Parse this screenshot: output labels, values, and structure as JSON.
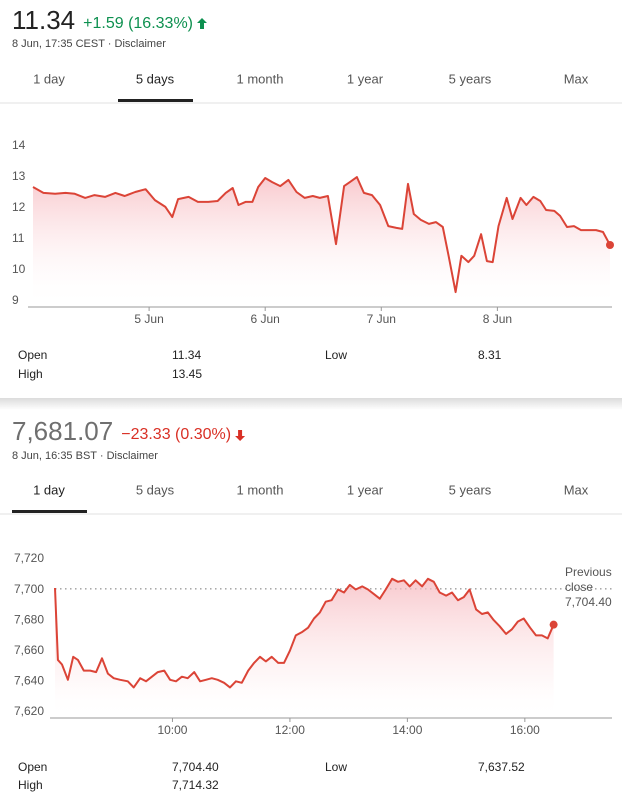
{
  "chart_data": [
    {
      "type": "line",
      "price": "11.34",
      "price_color": "#222222",
      "change": "+1.59 (16.33%)",
      "change_color": "#0d904f",
      "change_direction": "up",
      "meta": "8 Jun, 17:35 CEST · Disclaimer",
      "tabs": [
        "1 day",
        "5 days",
        "1 month",
        "1 year",
        "5 years",
        "Max"
      ],
      "selected_tab": 1,
      "color": "#db4437",
      "ylim": [
        9,
        14
      ],
      "yticks": [
        9,
        10,
        11,
        12,
        13,
        14
      ],
      "xlim": [
        0,
        4.97
      ],
      "xticks": [
        {
          "value": 1,
          "label": "5 Jun"
        },
        {
          "value": 2,
          "label": "6 Jun"
        },
        {
          "value": 3,
          "label": "7 Jun"
        },
        {
          "value": 4,
          "label": "8 Jun"
        }
      ],
      "x": [
        0,
        0.09,
        0.19,
        0.28,
        0.36,
        0.45,
        0.53,
        0.62,
        0.71,
        0.79,
        0.88,
        0.97,
        1.05,
        1.14,
        1.2,
        1.25,
        1.34,
        1.42,
        1.51,
        1.59,
        1.66,
        1.72,
        1.77,
        1.83,
        1.89,
        1.94,
        2.0,
        2.06,
        2.13,
        2.2,
        2.27,
        2.34,
        2.41,
        2.47,
        2.54,
        2.61,
        2.68,
        2.73,
        2.79,
        2.85,
        2.92,
        2.99,
        3.06,
        3.13,
        3.18,
        3.23,
        3.28,
        3.34,
        3.41,
        3.47,
        3.53,
        3.58,
        3.64,
        3.69,
        3.75,
        3.8,
        3.86,
        3.91,
        3.96,
        4.01,
        4.08,
        4.13,
        4.2,
        4.25,
        4.31,
        4.37,
        4.42,
        4.49,
        4.54,
        4.6,
        4.66,
        4.72,
        4.78,
        4.85,
        4.91,
        4.97
      ],
      "values": [
        12.87,
        12.68,
        12.65,
        12.68,
        12.65,
        12.52,
        12.61,
        12.55,
        12.68,
        12.58,
        12.71,
        12.8,
        12.45,
        12.23,
        11.9,
        12.48,
        12.55,
        12.39,
        12.39,
        12.42,
        12.68,
        12.84,
        12.29,
        12.39,
        12.39,
        12.87,
        13.16,
        13.03,
        12.9,
        13.1,
        12.71,
        12.52,
        12.58,
        12.52,
        12.58,
        11.03,
        12.9,
        13.03,
        13.19,
        12.68,
        12.61,
        12.29,
        11.61,
        11.55,
        11.52,
        12.97,
        12.0,
        11.81,
        11.68,
        11.74,
        11.58,
        10.65,
        9.48,
        10.65,
        10.45,
        10.65,
        11.35,
        10.48,
        10.45,
        11.61,
        12.52,
        11.84,
        12.52,
        12.29,
        12.55,
        12.42,
        12.13,
        12.1,
        11.94,
        11.58,
        11.61,
        11.48,
        11.48,
        11.48,
        11.42,
        11.0
      ],
      "stats": [
        {
          "label": "Open",
          "value": "11.34"
        },
        {
          "label": "High",
          "value": "13.45"
        },
        {
          "label": "Low",
          "value": "8.31"
        }
      ]
    },
    {
      "type": "line",
      "price": "7,681.07",
      "price_color": "#6f6f6f",
      "change": "−23.33 (0.30%)",
      "change_color": "#d93025",
      "change_direction": "down",
      "meta": "8 Jun, 16:35 BST · Disclaimer",
      "tabs": [
        "1 day",
        "5 days",
        "1 month",
        "1 year",
        "5 years",
        "Max"
      ],
      "selected_tab": 0,
      "color": "#db4437",
      "ylim": [
        7620,
        7720
      ],
      "yticks": [
        {
          "value": 7620,
          "label": "7,620"
        },
        {
          "value": 7640,
          "label": "7,640"
        },
        {
          "value": 7660,
          "label": "7,660"
        },
        {
          "value": 7680,
          "label": "7,680"
        },
        {
          "value": 7700,
          "label": "7,700"
        },
        {
          "value": 7720,
          "label": "7,720"
        }
      ],
      "xlim": [
        8,
        17.45
      ],
      "xticks": [
        {
          "value": 10,
          "label": "10:00"
        },
        {
          "value": 12,
          "label": "12:00"
        },
        {
          "value": 14,
          "label": "14:00"
        },
        {
          "value": 16,
          "label": "16:00"
        }
      ],
      "reference": {
        "lines": [
          "Previous",
          "close"
        ],
        "value": 7704.4,
        "value_label": "7,704.40"
      },
      "x": [
        8.0,
        8.05,
        8.12,
        8.22,
        8.31,
        8.39,
        8.49,
        8.6,
        8.7,
        8.8,
        8.9,
        9.0,
        9.11,
        9.24,
        9.34,
        9.45,
        9.55,
        9.65,
        9.75,
        9.86,
        9.96,
        10.06,
        10.16,
        10.26,
        10.37,
        10.47,
        10.57,
        10.67,
        10.77,
        10.88,
        10.98,
        11.08,
        11.18,
        11.29,
        11.39,
        11.49,
        11.59,
        11.69,
        11.8,
        11.9,
        12.0,
        12.1,
        12.2,
        12.31,
        12.41,
        12.51,
        12.61,
        12.71,
        12.82,
        12.92,
        13.02,
        13.12,
        13.23,
        13.33,
        13.43,
        13.53,
        13.63,
        13.74,
        13.84,
        13.94,
        14.04,
        14.14,
        14.25,
        14.35,
        14.45,
        14.55,
        14.66,
        14.76,
        14.86,
        14.96,
        15.06,
        15.17,
        15.27,
        15.37,
        15.47,
        15.57,
        15.68,
        15.78,
        15.88,
        15.98,
        16.09,
        16.19,
        16.29,
        16.39,
        16.49
      ],
      "values": [
        7705,
        7658,
        7655,
        7645,
        7660,
        7658,
        7651,
        7651,
        7650,
        7659,
        7649,
        7646,
        7645,
        7644,
        7640,
        7646,
        7644,
        7647,
        7650,
        7651,
        7645,
        7644,
        7647,
        7646,
        7650,
        7644,
        7645,
        7646,
        7645,
        7643,
        7640,
        7644,
        7643,
        7651,
        7656,
        7660,
        7657,
        7660,
        7656,
        7656,
        7664,
        7674,
        7676,
        7679,
        7685,
        7689,
        7696,
        7697,
        7704,
        7702,
        7707,
        7704,
        7706,
        7704,
        7701,
        7698,
        7704,
        7711,
        7709,
        7710,
        7706,
        7710,
        7706,
        7711,
        7709,
        7702,
        7700,
        7702,
        7697,
        7699,
        7704,
        7691,
        7688,
        7689,
        7684,
        7680,
        7675,
        7678,
        7683,
        7685,
        7679,
        7674,
        7674,
        7672,
        7681
      ],
      "stats": [
        {
          "label": "Open",
          "value": "7,704.40"
        },
        {
          "label": "High",
          "value": "7,714.32"
        },
        {
          "label": "Low",
          "value": "7,637.52"
        }
      ]
    }
  ]
}
